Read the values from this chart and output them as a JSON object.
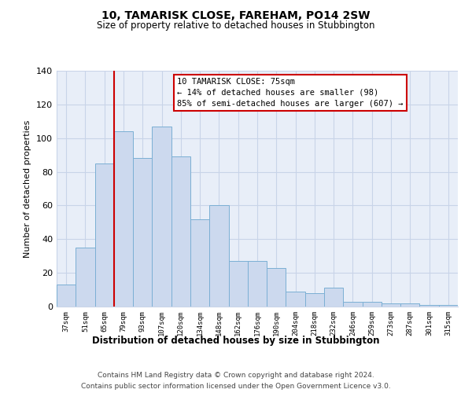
{
  "title": "10, TAMARISK CLOSE, FAREHAM, PO14 2SW",
  "subtitle": "Size of property relative to detached houses in Stubbington",
  "xlabel": "Distribution of detached houses by size in Stubbington",
  "ylabel": "Number of detached properties",
  "categories": [
    "37sqm",
    "51sqm",
    "65sqm",
    "79sqm",
    "93sqm",
    "107sqm",
    "120sqm",
    "134sqm",
    "148sqm",
    "162sqm",
    "176sqm",
    "190sqm",
    "204sqm",
    "218sqm",
    "232sqm",
    "246sqm",
    "259sqm",
    "273sqm",
    "287sqm",
    "301sqm",
    "315sqm"
  ],
  "values": [
    13,
    35,
    85,
    104,
    88,
    107,
    89,
    52,
    60,
    27,
    27,
    23,
    9,
    8,
    11,
    3,
    3,
    2,
    2,
    1,
    1
  ],
  "bar_color": "#ccd9ee",
  "bar_edge_color": "#7bafd4",
  "plot_bg_color": "#e8eef8",
  "ylim": [
    0,
    140
  ],
  "yticks": [
    0,
    20,
    40,
    60,
    80,
    100,
    120,
    140
  ],
  "vline_x_index": 2.5,
  "vline_color": "#cc0000",
  "annotation_title": "10 TAMARISK CLOSE: 75sqm",
  "annotation_line1": "← 14% of detached houses are smaller (98)",
  "annotation_line2": "85% of semi-detached houses are larger (607) →",
  "annotation_box_color": "#ffffff",
  "annotation_box_edge": "#cc0000",
  "footer1": "Contains HM Land Registry data © Crown copyright and database right 2024.",
  "footer2": "Contains public sector information licensed under the Open Government Licence v3.0.",
  "background_color": "#ffffff",
  "grid_color": "#c8d4e8"
}
